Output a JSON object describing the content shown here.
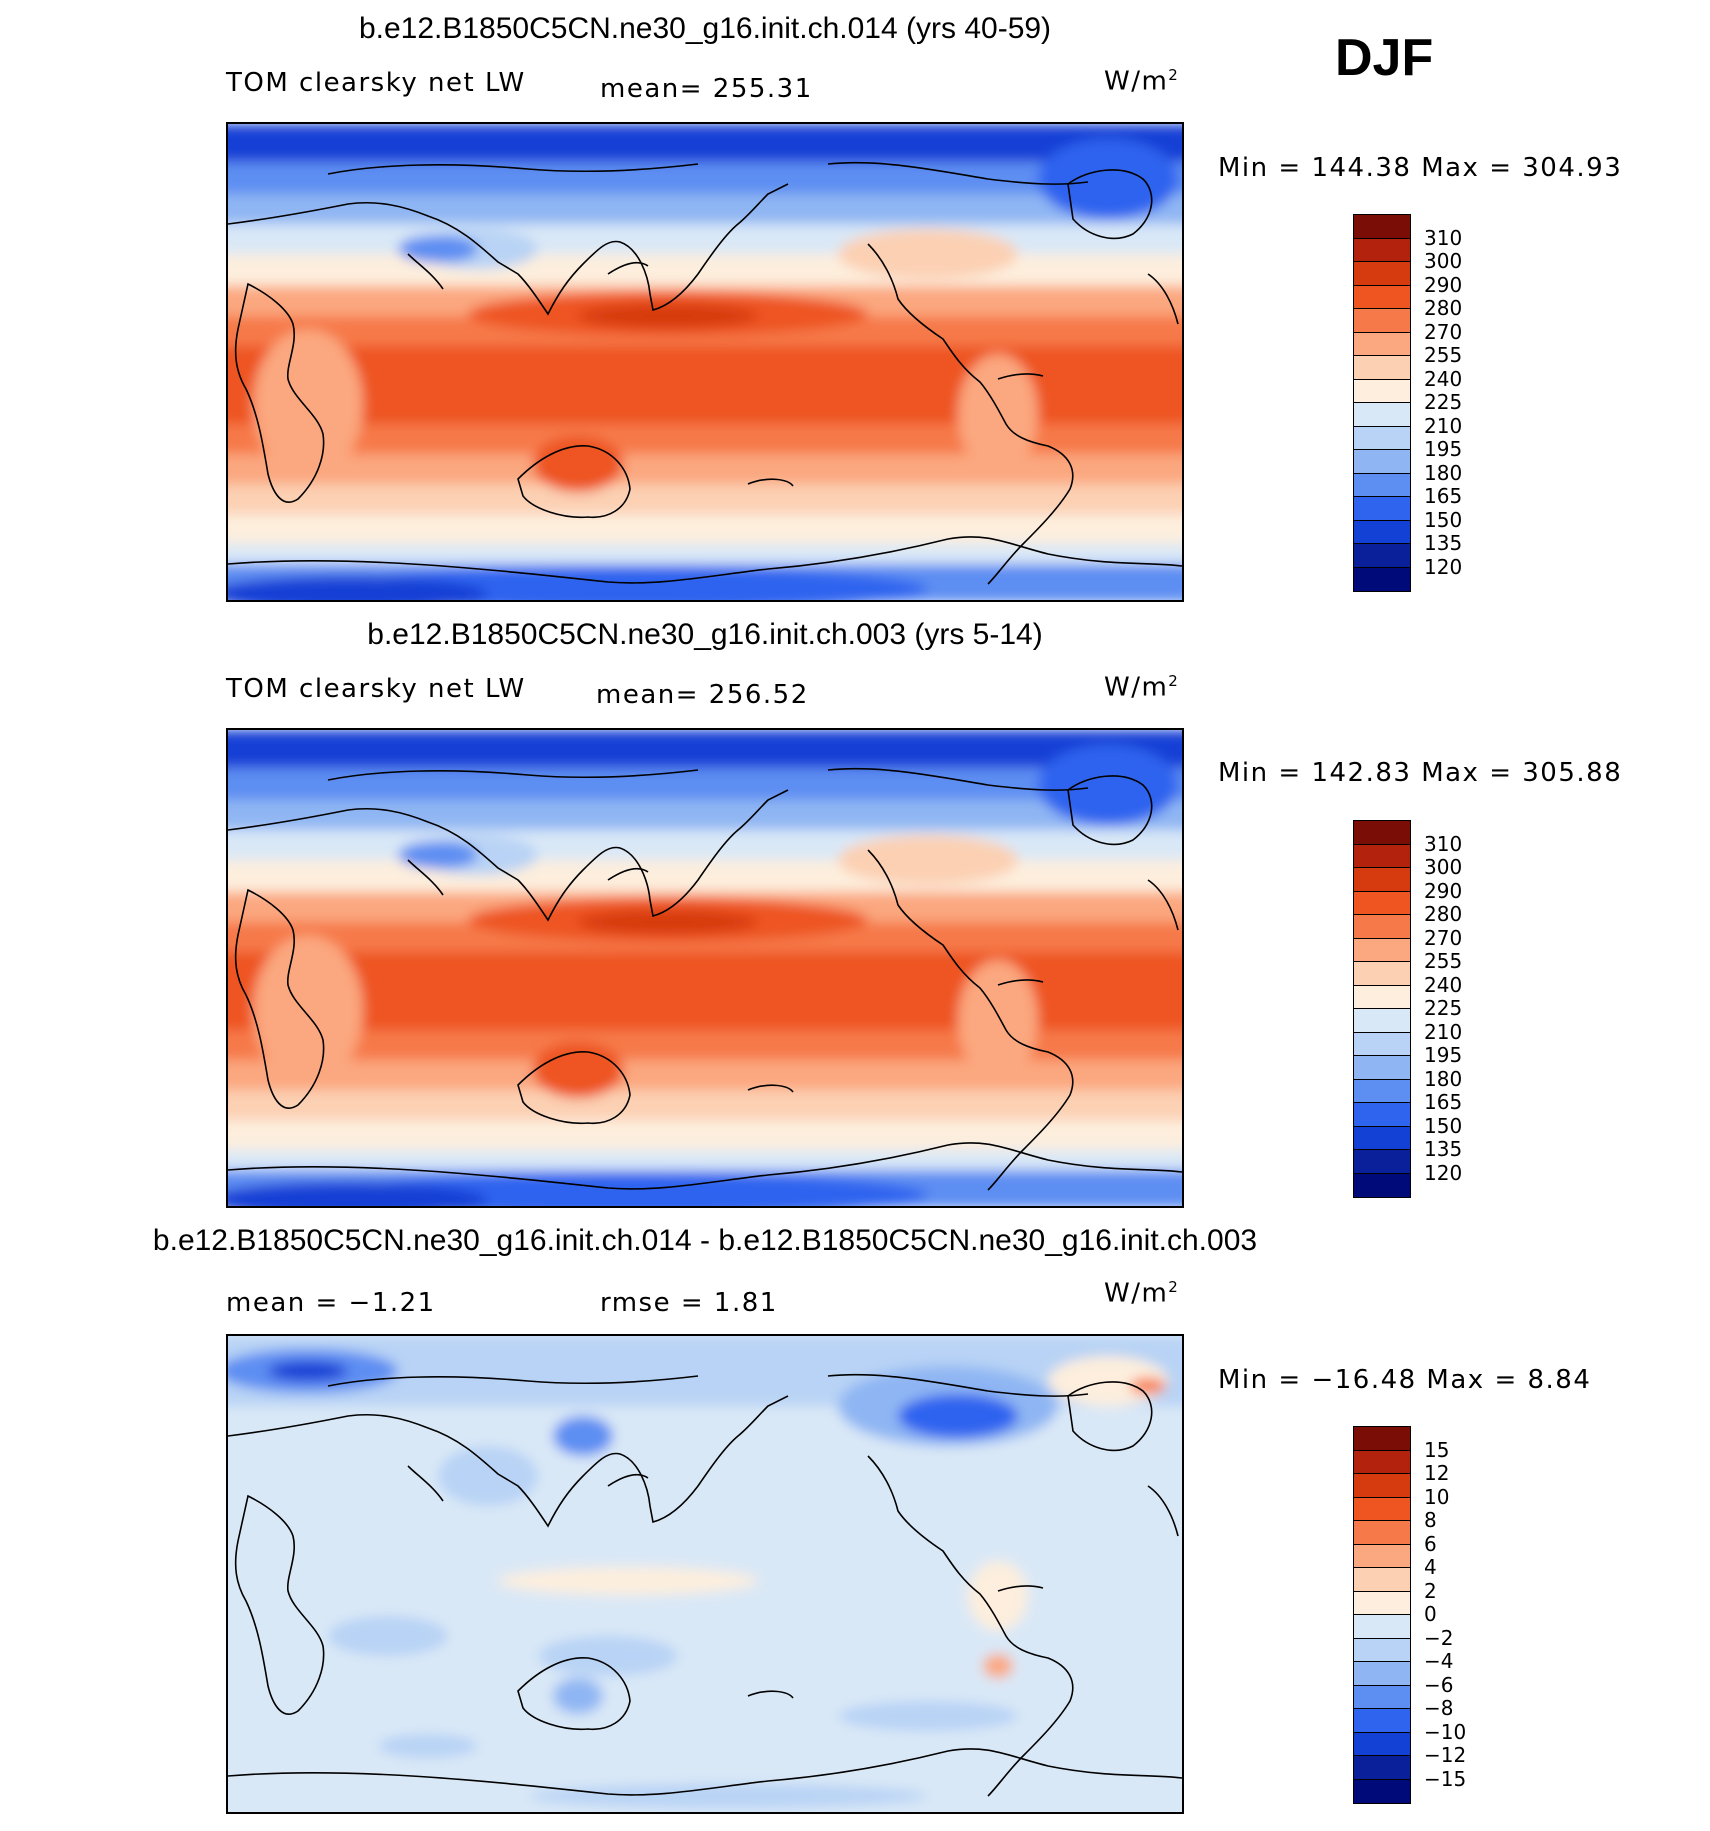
{
  "season": "DJF",
  "units_label": "W/m",
  "units_sup": "2",
  "chart_data": [
    {
      "type": "heatmap",
      "title": "b.e12.B1850C5CN.ne30_g16.init.ch.014 (yrs 40-59)",
      "variable": "TOM clearsky net LW",
      "mean_text": "mean= 255.31",
      "minmax_text": "Min = 144.38 Max = 304.93",
      "min": 144.38,
      "max": 304.93,
      "mean": 255.31,
      "levels": [
        "310",
        "300",
        "290",
        "280",
        "270",
        "255",
        "240",
        "225",
        "210",
        "195",
        "180",
        "165",
        "150",
        "135",
        "120"
      ],
      "colors": [
        "#7a0e07",
        "#b3220c",
        "#d63a0f",
        "#ee5520",
        "#f6794a",
        "#fba77f",
        "#fcd0b3",
        "#fdeedd",
        "#d9e8f7",
        "#b8d3f5",
        "#8fb6f3",
        "#5d8ef2",
        "#2f64ef",
        "#1340d5",
        "#0a209a",
        "#000a78"
      ]
    },
    {
      "type": "heatmap",
      "title": "b.e12.B1850C5CN.ne30_g16.init.ch.003 (yrs 5-14)",
      "variable": "TOM clearsky net LW",
      "mean_text": "mean= 256.52",
      "minmax_text": "Min = 142.83 Max = 305.88",
      "min": 142.83,
      "max": 305.88,
      "mean": 256.52,
      "levels": [
        "310",
        "300",
        "290",
        "280",
        "270",
        "255",
        "240",
        "225",
        "210",
        "195",
        "180",
        "165",
        "150",
        "135",
        "120"
      ],
      "colors": [
        "#7a0e07",
        "#b3220c",
        "#d63a0f",
        "#ee5520",
        "#f6794a",
        "#fba77f",
        "#fcd0b3",
        "#fdeedd",
        "#d9e8f7",
        "#b8d3f5",
        "#8fb6f3",
        "#5d8ef2",
        "#2f64ef",
        "#1340d5",
        "#0a209a",
        "#000a78"
      ]
    },
    {
      "type": "heatmap",
      "title": "b.e12.B1850C5CN.ne30_g16.init.ch.014 - b.e12.B1850C5CN.ne30_g16.init.ch.003",
      "mean_text": "mean = −1.21",
      "rmse_text": "rmse = 1.81",
      "minmax_text": "Min = −16.48 Max = 8.84",
      "min": -16.48,
      "max": 8.84,
      "mean": -1.21,
      "rmse": 1.81,
      "levels": [
        "15",
        "12",
        "10",
        "8",
        "6",
        "4",
        "2",
        "0",
        "−2",
        "−4",
        "−6",
        "−8",
        "−10",
        "−12",
        "−15"
      ],
      "colors": [
        "#7a0e07",
        "#b3220c",
        "#d63a0f",
        "#ee5520",
        "#f6794a",
        "#fba77f",
        "#fcd0b3",
        "#fdeedd",
        "#d9e8f7",
        "#b8d3f5",
        "#8fb6f3",
        "#5d8ef2",
        "#2f64ef",
        "#1340d5",
        "#0a209a",
        "#000a78"
      ]
    }
  ]
}
